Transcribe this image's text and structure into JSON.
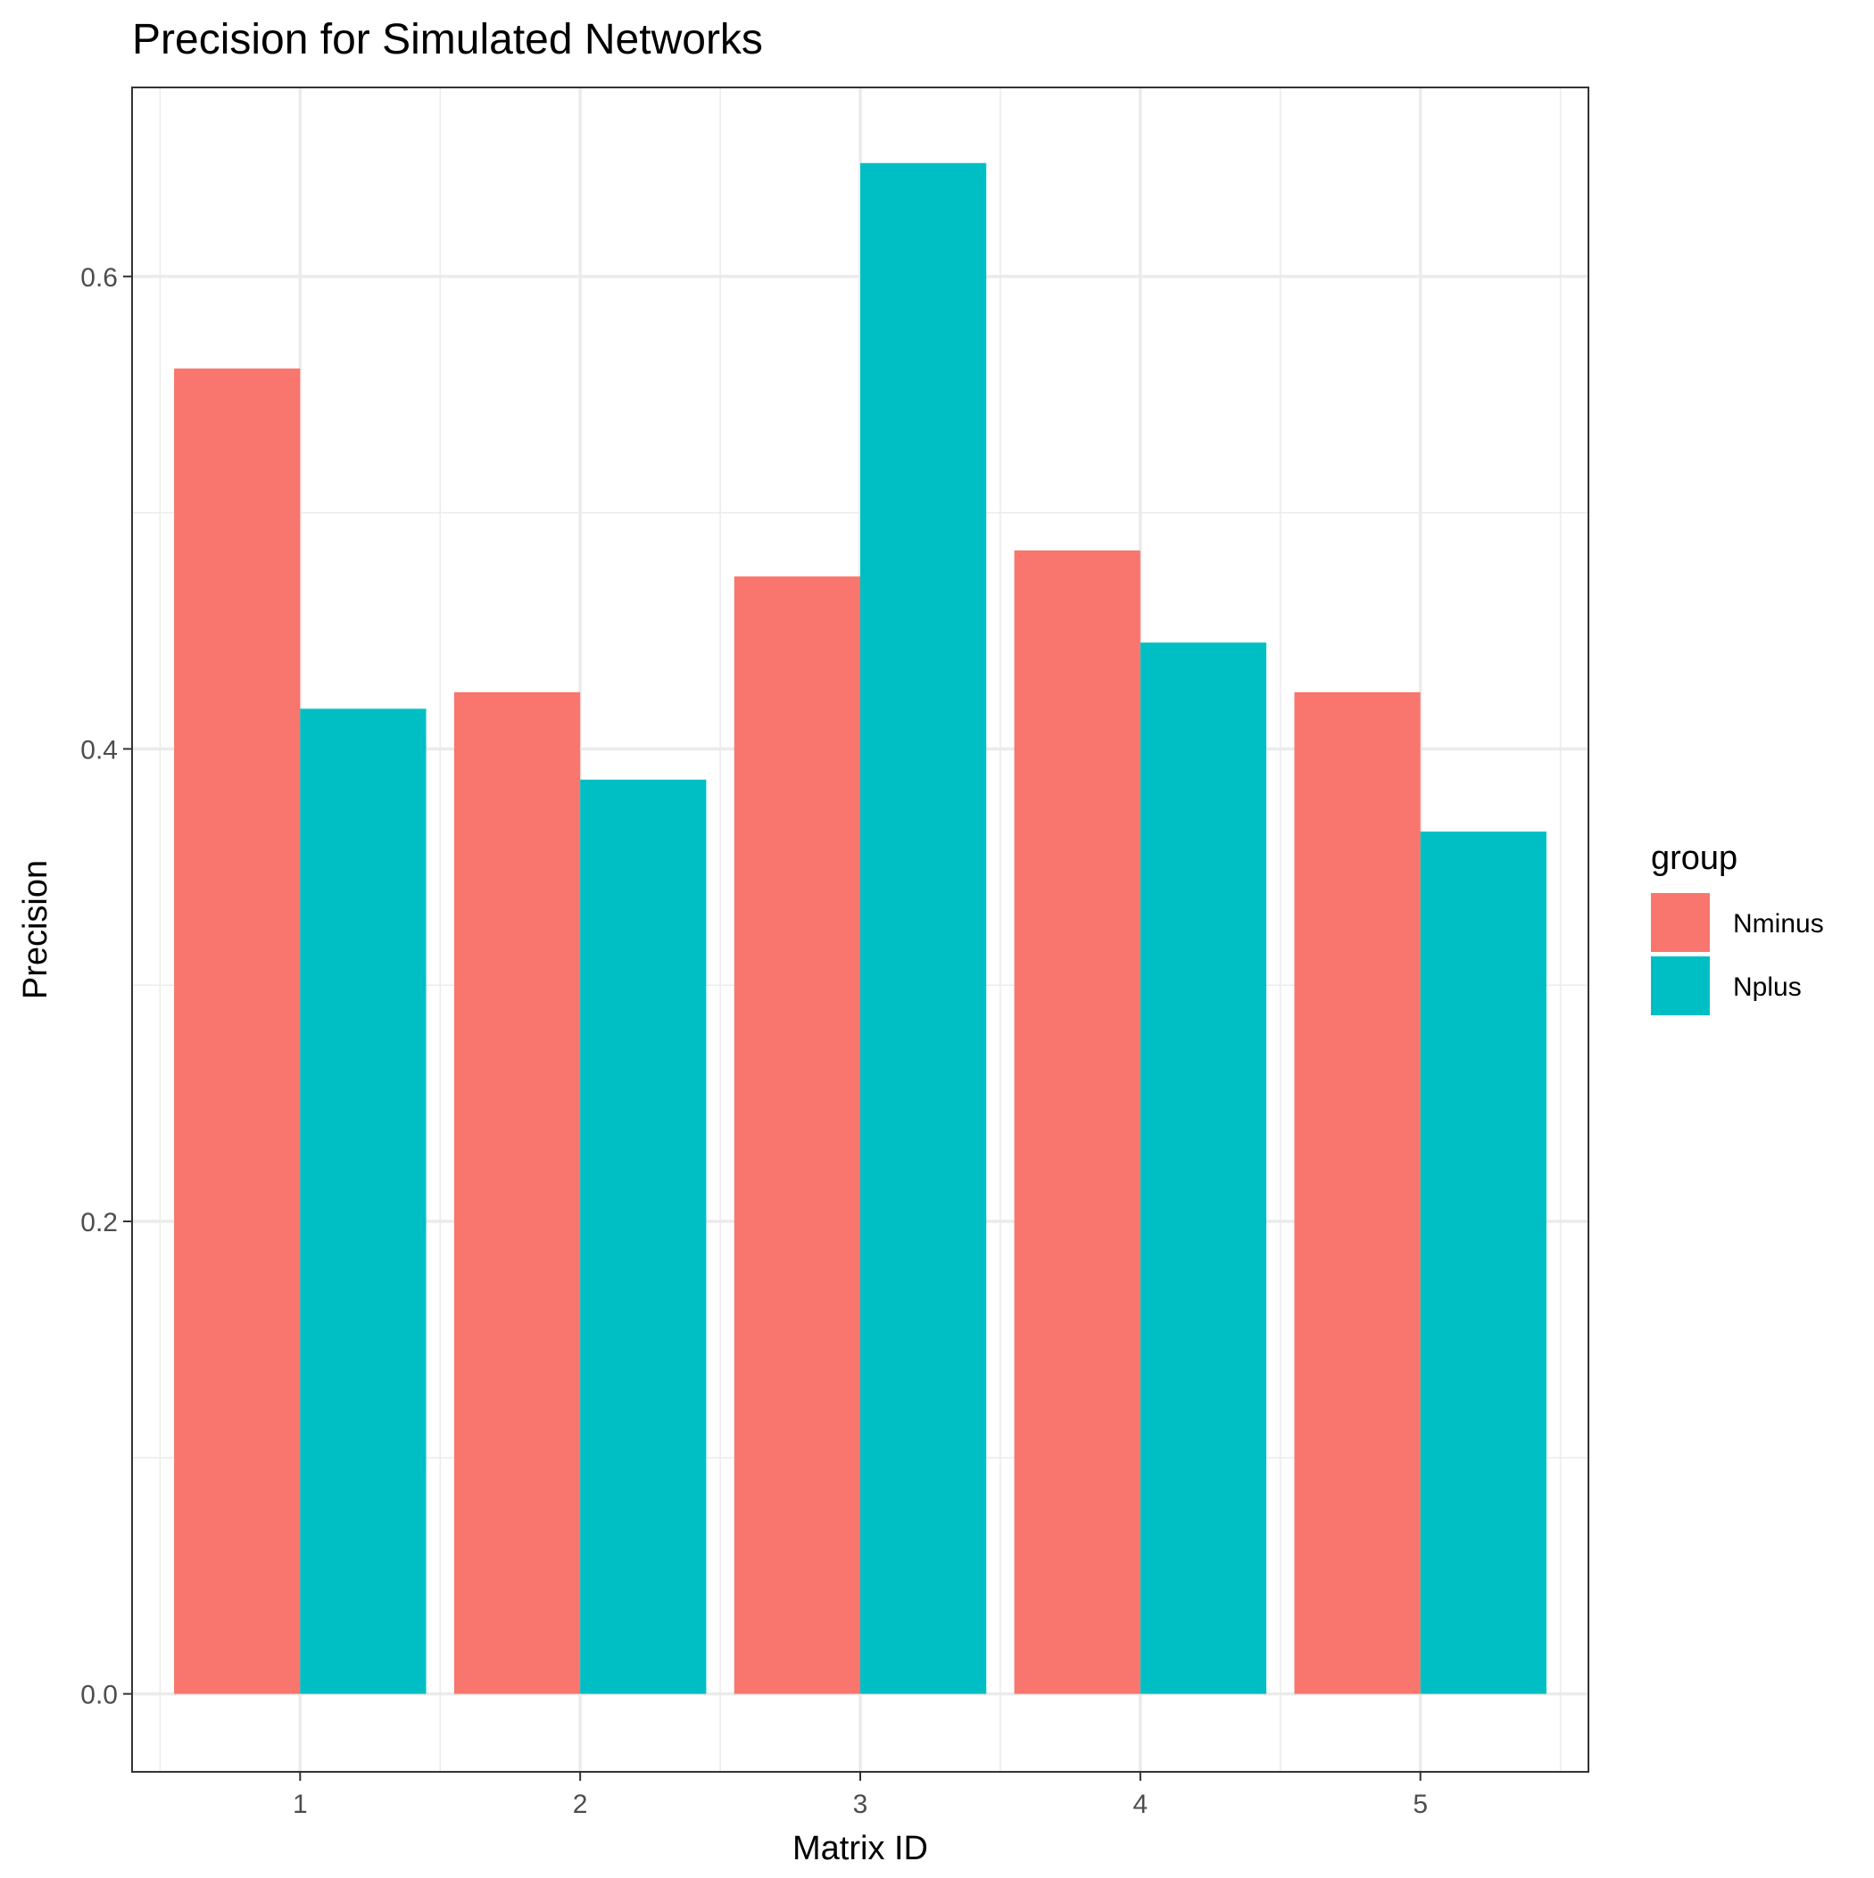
{
  "chart_data": {
    "type": "bar",
    "title": "Precision for Simulated Networks",
    "xlabel": "Matrix ID",
    "ylabel": "Precision",
    "categories": [
      "1",
      "2",
      "3",
      "4",
      "5"
    ],
    "series": [
      {
        "name": "Nminus",
        "color": "#F8766D",
        "values": [
          0.561,
          0.424,
          0.473,
          0.484,
          0.424
        ]
      },
      {
        "name": "Nplus",
        "color": "#00BFC4",
        "values": [
          0.417,
          0.387,
          0.648,
          0.445,
          0.365
        ]
      }
    ],
    "ylim": [
      -0.033,
      0.68
    ],
    "yticks": [
      0.0,
      0.2,
      0.4,
      0.6
    ],
    "ytick_labels": [
      "0.0",
      "0.2",
      "0.4",
      "0.6"
    ],
    "grid": true,
    "legend": {
      "title": "group",
      "position": "right"
    }
  }
}
